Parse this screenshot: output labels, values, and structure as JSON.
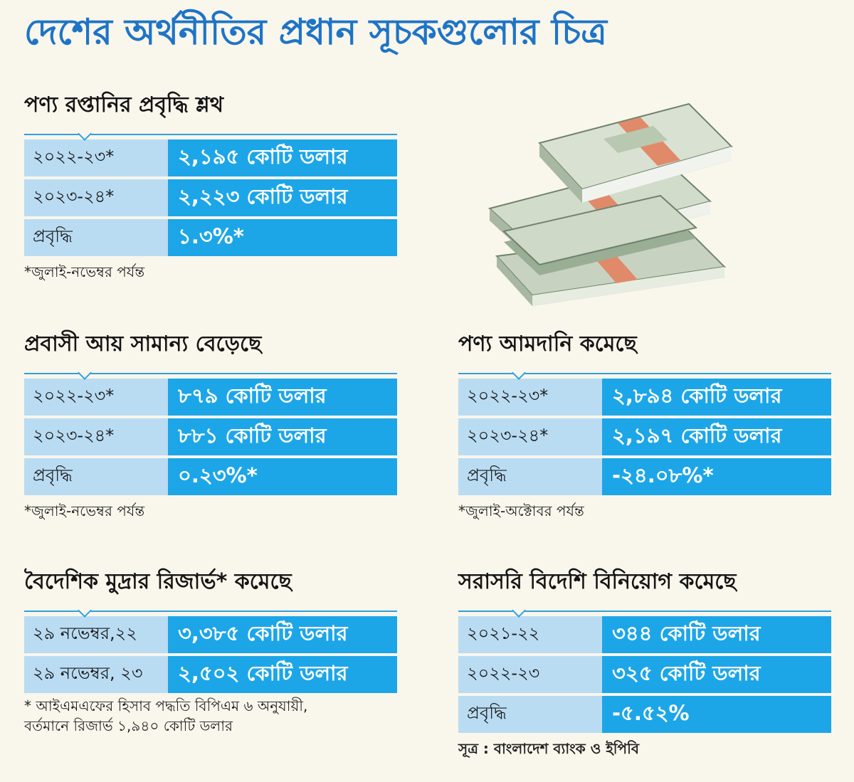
{
  "title": "দেশের অর্থনীতির প্রধান সূচকগুলোর চিত্র",
  "exports": {
    "heading": "পণ্য রপ্তানির প্রবৃদ্ধি শ্লথ",
    "rows": [
      {
        "label": "২০২২-২৩*",
        "value": "২,১৯৫ কোটি ডলার"
      },
      {
        "label": "২০২৩-২৪*",
        "value": "২,২২৩ কোটি ডলার"
      },
      {
        "label": "প্রবৃদ্ধি",
        "value": "১.৩%*"
      }
    ],
    "note": "*জুলাই-নভেম্বর পর্যন্ত"
  },
  "remittance": {
    "heading": "প্রবাসী আয় সামান্য বেড়েছে",
    "rows": [
      {
        "label": "২০২২-২৩*",
        "value": "৮৭৯ কোটি ডলার"
      },
      {
        "label": "২০২৩-২৪*",
        "value": "৮৮১ কোটি ডলার"
      },
      {
        "label": "প্রবৃদ্ধি",
        "value": "০.২৩%*"
      }
    ],
    "note": "*জুলাই-নভেম্বর পর্যন্ত"
  },
  "imports": {
    "heading": "পণ্য আমদানি কমেছে",
    "rows": [
      {
        "label": "২০২২-২৩*",
        "value": "২,৮৯৪ কোটি ডলার"
      },
      {
        "label": "২০২৩-২৪*",
        "value": "২,১৯৭ কোটি ডলার"
      },
      {
        "label": "প্রবৃদ্ধি",
        "value": "-২৪.০৮%*"
      }
    ],
    "note": "*জুলাই-অক্টোবর পর্যন্ত"
  },
  "reserve": {
    "heading": "বৈদেশিক মুদ্রার রিজার্ভ* কমেছে",
    "rows": [
      {
        "label": "২৯ নভেম্বর,২২",
        "value": "৩,৩৮৫ কোটি ডলার"
      },
      {
        "label": "২৯ নভেম্বর, ২৩",
        "value": "২,৫০২ কোটি ডলার"
      }
    ],
    "note_line1": "* আইএমএফের হিসাব পদ্ধতি বিপিএম ৬ অনুযায়ী,",
    "note_line2": "বর্তমানে রিজার্ভ ১,৯৪০ কোটি ডলার"
  },
  "fdi": {
    "heading": "সরাসরি বিদেশি বিনিয়োগ কমেছে",
    "rows": [
      {
        "label": "২০২১-২২",
        "value": "৩৪৪ কোটি ডলার"
      },
      {
        "label": "২০২২-২৩",
        "value": "৩২৫ কোটি ডলার"
      },
      {
        "label": "প্রবৃদ্ধি",
        "value": "-৫.৫২%"
      }
    ]
  },
  "source": "সূত্র : বাংলাদেশ ব্যাংক ও ইপিবি",
  "colors": {
    "title": "#1e74c6",
    "label_bg": "#b9dcf3",
    "value_bg": "#1ca6e8",
    "rule": "#2fa0de"
  },
  "illustration": "money-stack-icon"
}
